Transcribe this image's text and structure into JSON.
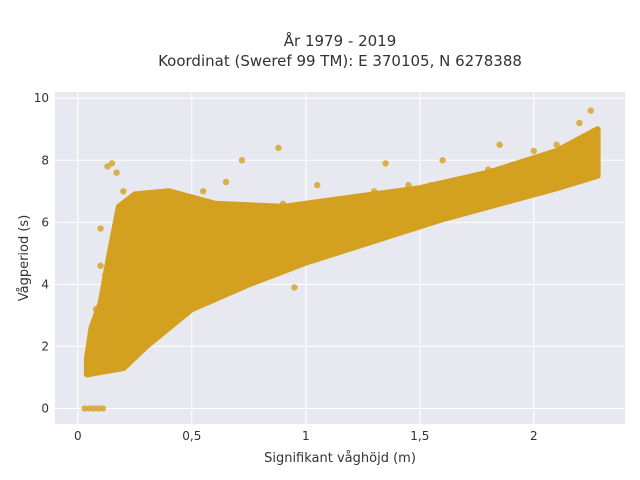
{
  "chart_data": {
    "type": "scatter",
    "title_line1": "År 1979 - 2019",
    "title_line2": "Koordinat (Sweref 99 TM): E 370105, N 6278388",
    "xlabel": "Signifikant våghöjd (m)",
    "ylabel": "Vågperiod (s)",
    "xlim": [
      -0.1,
      2.4
    ],
    "ylim": [
      -0.5,
      10.2
    ],
    "xticks": [
      0,
      0.5,
      1,
      1.5,
      2
    ],
    "xtick_labels": [
      "0",
      "0,5",
      "1",
      "1,5",
      "2"
    ],
    "yticks": [
      0,
      2,
      4,
      6,
      8,
      10
    ],
    "ytick_labels": [
      "0",
      "2",
      "4",
      "6",
      "8",
      "10"
    ],
    "grid": true,
    "marker_color": "#D4A020",
    "background_color": "#E8E8F0",
    "series": [
      {
        "points": [
          [
            0.03,
            0.0
          ],
          [
            0.05,
            0.0
          ],
          [
            0.07,
            0.0
          ],
          [
            0.09,
            0.0
          ],
          [
            0.11,
            0.0
          ],
          [
            0.05,
            1.3
          ],
          [
            0.08,
            1.7
          ],
          [
            0.1,
            2.2
          ],
          [
            0.12,
            2.6
          ],
          [
            0.06,
            2.0
          ],
          [
            0.15,
            1.5
          ],
          [
            0.15,
            2.3
          ],
          [
            0.18,
            3.0
          ],
          [
            0.2,
            3.6
          ],
          [
            0.12,
            3.8
          ],
          [
            0.08,
            3.2
          ],
          [
            0.1,
            4.6
          ],
          [
            0.12,
            4.3
          ],
          [
            0.1,
            5.8
          ],
          [
            0.13,
            7.8
          ],
          [
            0.15,
            7.9
          ],
          [
            0.17,
            7.6
          ],
          [
            0.2,
            7.0
          ],
          [
            0.22,
            6.2
          ],
          [
            0.25,
            5.5
          ],
          [
            0.25,
            4.0
          ],
          [
            0.3,
            3.0
          ],
          [
            0.3,
            4.5
          ],
          [
            0.35,
            5.0
          ],
          [
            0.35,
            6.5
          ],
          [
            0.4,
            7.0
          ],
          [
            0.45,
            5.0
          ],
          [
            0.45,
            3.8
          ],
          [
            0.5,
            6.5
          ],
          [
            0.55,
            7.0
          ],
          [
            0.6,
            4.5
          ],
          [
            0.6,
            6.0
          ],
          [
            0.65,
            7.3
          ],
          [
            0.7,
            5.5
          ],
          [
            0.72,
            8.0
          ],
          [
            0.8,
            6.0
          ],
          [
            0.8,
            4.2
          ],
          [
            0.88,
            8.4
          ],
          [
            0.9,
            6.6
          ],
          [
            0.95,
            3.9
          ],
          [
            1.0,
            6.2
          ],
          [
            1.05,
            5.0
          ],
          [
            1.05,
            7.2
          ],
          [
            1.1,
            6.5
          ],
          [
            1.2,
            6.7
          ],
          [
            1.25,
            5.8
          ],
          [
            1.3,
            7.0
          ],
          [
            1.35,
            7.9
          ],
          [
            1.4,
            6.6
          ],
          [
            1.45,
            7.2
          ],
          [
            1.55,
            7.2
          ],
          [
            1.6,
            6.7
          ],
          [
            1.6,
            8.0
          ],
          [
            1.7,
            7.4
          ],
          [
            1.75,
            6.8
          ],
          [
            1.8,
            7.7
          ],
          [
            1.85,
            8.5
          ],
          [
            1.9,
            7.3
          ],
          [
            1.95,
            7.9
          ],
          [
            2.0,
            8.3
          ],
          [
            2.05,
            7.6
          ],
          [
            2.1,
            8.5
          ],
          [
            2.15,
            8.1
          ],
          [
            2.2,
            9.2
          ],
          [
            2.25,
            9.6
          ]
        ]
      }
    ]
  }
}
